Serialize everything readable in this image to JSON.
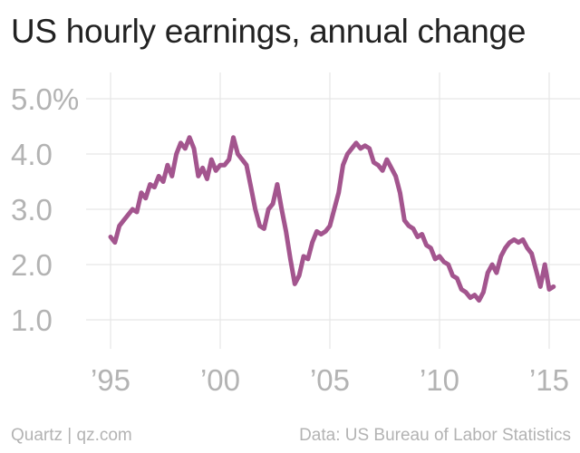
{
  "header": {
    "title": "US hourly earnings, annual change"
  },
  "footer": {
    "source": "Quartz | qz.com",
    "credit": "Data: US Bureau of Labor Statistics"
  },
  "chart_data": {
    "type": "line",
    "title": "US hourly earnings, annual change",
    "xlabel": "",
    "ylabel": "",
    "x_ticks": [
      {
        "value": 1995,
        "label": "’95"
      },
      {
        "value": 2000,
        "label": "’00"
      },
      {
        "value": 2005,
        "label": "’05"
      },
      {
        "value": 2010,
        "label": "’10"
      },
      {
        "value": 2015,
        "label": "’15"
      }
    ],
    "y_ticks": [
      {
        "value": 5.0,
        "label": "5.0%"
      },
      {
        "value": 4.0,
        "label": "4.0"
      },
      {
        "value": 3.0,
        "label": "3.0"
      },
      {
        "value": 2.0,
        "label": "2.0"
      },
      {
        "value": 1.0,
        "label": "1.0"
      }
    ],
    "xlim": [
      1995,
      2015
    ],
    "ylim": [
      1.0,
      5.0
    ],
    "grid": true,
    "line_color": "#a3558e",
    "series": [
      {
        "x": [
          1995.0,
          1995.2,
          1995.4,
          1995.6,
          1995.8,
          1996.0,
          1996.2,
          1996.4,
          1996.6,
          1996.8,
          1997.0,
          1997.2,
          1997.4,
          1997.6,
          1997.8,
          1998.0,
          1998.2,
          1998.4,
          1998.6,
          1998.8,
          1999.0,
          1999.2,
          1999.4,
          1999.6,
          1999.8,
          2000.0,
          2000.2,
          2000.4,
          2000.6,
          2000.8,
          2001.0,
          2001.2,
          2001.4,
          2001.6,
          2001.8,
          2002.0,
          2002.2,
          2002.4,
          2002.6,
          2002.8,
          2003.0,
          2003.2,
          2003.4,
          2003.6,
          2003.8,
          2004.0,
          2004.2,
          2004.4,
          2004.6,
          2004.8,
          2005.0,
          2005.2,
          2005.4,
          2005.6,
          2005.8,
          2006.0,
          2006.2,
          2006.4,
          2006.6,
          2006.8,
          2007.0,
          2007.2,
          2007.4,
          2007.6,
          2007.8,
          2008.0,
          2008.2,
          2008.4,
          2008.6,
          2008.8,
          2009.0,
          2009.2,
          2009.4,
          2009.6,
          2009.8,
          2010.0,
          2010.2,
          2010.4,
          2010.6,
          2010.8,
          2011.0,
          2011.2,
          2011.4,
          2011.6,
          2011.8,
          2012.0,
          2012.2,
          2012.4,
          2012.6,
          2012.8,
          2013.0,
          2013.2,
          2013.4,
          2013.6,
          2013.8,
          2014.0,
          2014.2,
          2014.4,
          2014.6,
          2014.8,
          2015.0,
          2015.2
        ],
        "y": [
          2.5,
          2.4,
          2.7,
          2.8,
          2.9,
          3.0,
          2.95,
          3.3,
          3.2,
          3.45,
          3.4,
          3.6,
          3.5,
          3.8,
          3.6,
          4.0,
          4.2,
          4.1,
          4.3,
          4.1,
          3.6,
          3.75,
          3.55,
          3.9,
          3.7,
          3.8,
          3.8,
          3.9,
          4.3,
          4.0,
          3.9,
          3.8,
          3.4,
          3.0,
          2.7,
          2.65,
          3.0,
          3.1,
          3.45,
          3.0,
          2.6,
          2.1,
          1.65,
          1.8,
          2.15,
          2.1,
          2.4,
          2.6,
          2.55,
          2.6,
          2.7,
          3.0,
          3.3,
          3.8,
          4.0,
          4.1,
          4.2,
          4.1,
          4.15,
          4.1,
          3.85,
          3.8,
          3.7,
          3.9,
          3.75,
          3.6,
          3.3,
          2.8,
          2.7,
          2.65,
          2.5,
          2.55,
          2.35,
          2.3,
          2.1,
          2.15,
          2.05,
          2.0,
          1.8,
          1.75,
          1.55,
          1.5,
          1.4,
          1.45,
          1.35,
          1.5,
          1.85,
          2.0,
          1.85,
          2.15,
          2.3,
          2.4,
          2.45,
          2.4,
          2.45,
          2.3,
          2.2,
          1.9,
          1.6,
          2.0,
          1.55,
          1.6
        ],
        "_note": ""
      }
    ]
  }
}
